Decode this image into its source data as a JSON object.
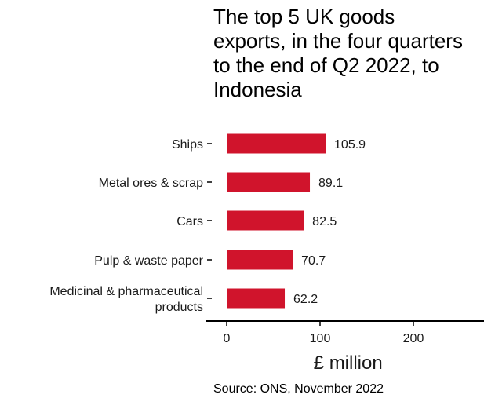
{
  "chart_data": {
    "type": "bar",
    "orientation": "horizontal",
    "title": "The top 5 UK goods exports, in the four quarters to the end of Q2 2022, to Indonesia",
    "categories": [
      "Ships",
      "Metal ores & scrap",
      "Cars",
      "Pulp & waste paper",
      "Medicinal & pharmaceutical products"
    ],
    "values": [
      105.9,
      89.1,
      82.5,
      70.7,
      62.2
    ],
    "data_labels": [
      "105.9",
      "89.1",
      "82.5",
      "70.7",
      "62.2"
    ],
    "xlabel": "£ million",
    "ylabel": "",
    "xlim": [
      0,
      275
    ],
    "xticks": [
      0,
      100,
      200
    ],
    "xtick_labels": [
      "0",
      "100",
      "200"
    ],
    "grid": false,
    "bar_color": "#D0142C",
    "source": "Source: ONS, November 2022"
  }
}
